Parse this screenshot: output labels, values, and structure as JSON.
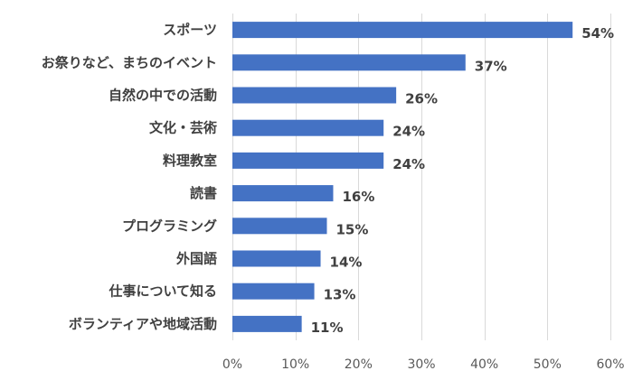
{
  "chart_data": {
    "type": "bar",
    "orientation": "horizontal",
    "categories": [
      "スポーツ",
      "お祭りなど、まちのイベント",
      "自然の中での活動",
      "文化・芸術",
      "料理教室",
      "読書",
      "プログラミング",
      "外国語",
      "仕事について知る",
      "ボランティアや地域活動"
    ],
    "values": [
      54,
      37,
      26,
      24,
      24,
      16,
      15,
      14,
      13,
      11
    ],
    "value_labels": [
      "54%",
      "37%",
      "26%",
      "24%",
      "24%",
      "16%",
      "15%",
      "14%",
      "13%",
      "11%"
    ],
    "xlim": [
      0,
      60
    ],
    "xticks": [
      0,
      10,
      20,
      30,
      40,
      50,
      60
    ],
    "xtick_labels": [
      "0%",
      "10%",
      "20%",
      "30%",
      "40%",
      "50%",
      "60%"
    ],
    "bar_color": "#4472c4",
    "grid": true,
    "legend": "none"
  }
}
